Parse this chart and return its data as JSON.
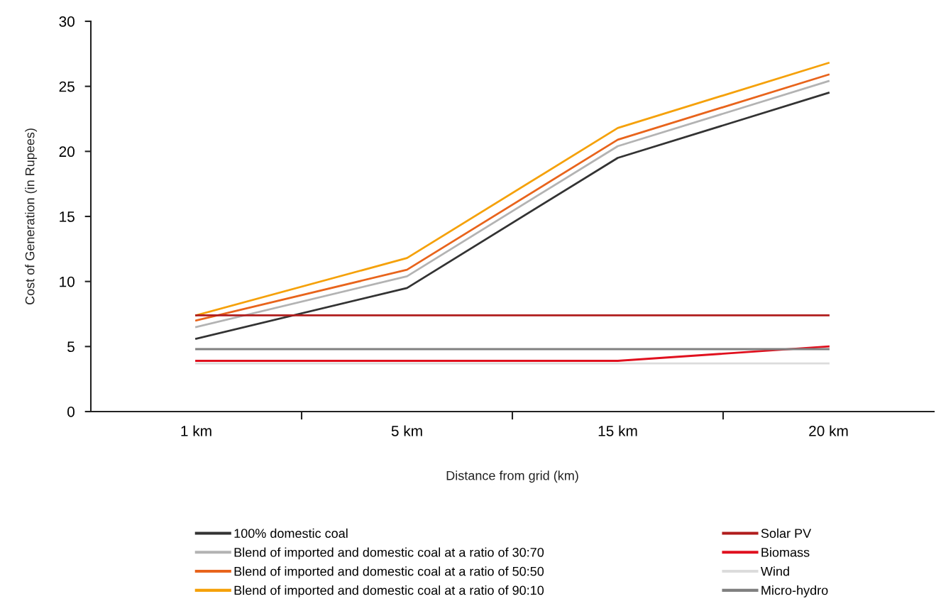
{
  "chart_data": {
    "type": "line",
    "xlabel": "Distance from grid (km)",
    "ylabel": "Cost of Generation (in Rupees)",
    "categories": [
      "1 km",
      "5 km",
      "15 km",
      "20 km"
    ],
    "series": [
      {
        "name": "100% domestic coal",
        "color": "#333333",
        "values": [
          5.6,
          9.5,
          19.5,
          24.5
        ]
      },
      {
        "name": "Blend of imported and domestic coal at a ratio of 30:70",
        "color": "#b3b3b3",
        "values": [
          6.5,
          10.4,
          20.4,
          25.4
        ]
      },
      {
        "name": "Blend of imported and domestic coal at a ratio of 50:50",
        "color": "#e8641c",
        "values": [
          7.0,
          10.9,
          20.9,
          25.9
        ]
      },
      {
        "name": "Blend of imported and domestic coal at a ratio of 90:10",
        "color": "#f5a10a",
        "values": [
          7.4,
          11.8,
          21.8,
          26.8
        ]
      },
      {
        "name": "Solar PV",
        "color": "#b01c1c",
        "values": [
          7.4,
          7.4,
          7.4,
          7.4
        ]
      },
      {
        "name": "Biomass",
        "color": "#e0101e",
        "values": [
          3.9,
          3.9,
          3.9,
          5.0
        ]
      },
      {
        "name": "Wind",
        "color": "#dcdcdc",
        "values": [
          3.7,
          3.7,
          3.7,
          3.7
        ]
      },
      {
        "name": "Micro-hydro",
        "color": "#808080",
        "values": [
          4.8,
          4.8,
          4.8,
          4.8
        ]
      }
    ],
    "ylim": [
      0,
      30
    ],
    "yticks": [
      0,
      5,
      10,
      15,
      20,
      25,
      30
    ],
    "grid": false,
    "legend": "bottom",
    "marker": "none",
    "line_style": "solid"
  }
}
